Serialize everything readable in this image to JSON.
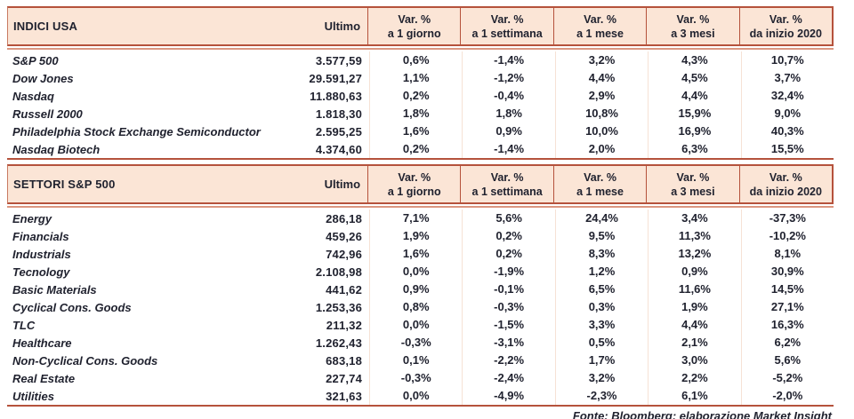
{
  "chart_data": [
    {
      "type": "table",
      "title": "INDICI USA",
      "ultimo_label": "Ultimo",
      "var_headers": [
        {
          "line1": "Var. %",
          "line2": "a 1 giorno"
        },
        {
          "line1": "Var. %",
          "line2": "a 1 settimana"
        },
        {
          "line1": "Var. %",
          "line2": "a 1 mese"
        },
        {
          "line1": "Var. %",
          "line2": "a 3 mesi"
        },
        {
          "line1": "Var. %",
          "line2": "da inizio 2020"
        }
      ],
      "rows": [
        {
          "name": "S&P 500",
          "ultimo": "3.577,59",
          "vars": [
            "0,6%",
            "-1,4%",
            "3,2%",
            "4,3%",
            "10,7%"
          ]
        },
        {
          "name": "Dow Jones",
          "ultimo": "29.591,27",
          "vars": [
            "1,1%",
            "-1,2%",
            "4,4%",
            "4,5%",
            "3,7%"
          ]
        },
        {
          "name": "Nasdaq",
          "ultimo": "11.880,63",
          "vars": [
            "0,2%",
            "-0,4%",
            "2,9%",
            "4,4%",
            "32,4%"
          ]
        },
        {
          "name": "Russell 2000",
          "ultimo": "1.818,30",
          "vars": [
            "1,8%",
            "1,8%",
            "10,8%",
            "15,9%",
            "9,0%"
          ]
        },
        {
          "name": "Philadelphia Stock Exchange Semiconductor",
          "ultimo": "2.595,25",
          "vars": [
            "1,6%",
            "0,9%",
            "10,0%",
            "16,9%",
            "40,3%"
          ]
        },
        {
          "name": "Nasdaq Biotech",
          "ultimo": "4.374,60",
          "vars": [
            "0,2%",
            "-1,4%",
            "2,0%",
            "6,3%",
            "15,5%"
          ]
        }
      ]
    },
    {
      "type": "table",
      "title": "SETTORI S&P 500",
      "ultimo_label": "Ultimo",
      "var_headers": [
        {
          "line1": "Var. %",
          "line2": "a 1 giorno"
        },
        {
          "line1": "Var. %",
          "line2": "a 1 settimana"
        },
        {
          "line1": "Var. %",
          "line2": "a 1 mese"
        },
        {
          "line1": "Var. %",
          "line2": "a 3 mesi"
        },
        {
          "line1": "Var. %",
          "line2": "da inizio 2020"
        }
      ],
      "rows": [
        {
          "name": "Energy",
          "ultimo": "286,18",
          "vars": [
            "7,1%",
            "5,6%",
            "24,4%",
            "3,4%",
            "-37,3%"
          ]
        },
        {
          "name": "Financials",
          "ultimo": "459,26",
          "vars": [
            "1,9%",
            "0,2%",
            "9,5%",
            "11,3%",
            "-10,2%"
          ]
        },
        {
          "name": "Industrials",
          "ultimo": "742,96",
          "vars": [
            "1,6%",
            "0,2%",
            "8,3%",
            "13,2%",
            "8,1%"
          ]
        },
        {
          "name": "Tecnology",
          "ultimo": "2.108,98",
          "vars": [
            "0,0%",
            "-1,9%",
            "1,2%",
            "0,9%",
            "30,9%"
          ]
        },
        {
          "name": "Basic Materials",
          "ultimo": "441,62",
          "vars": [
            "0,9%",
            "-0,1%",
            "6,5%",
            "11,6%",
            "14,5%"
          ]
        },
        {
          "name": "Cyclical Cons. Goods",
          "ultimo": "1.253,36",
          "vars": [
            "0,8%",
            "-0,3%",
            "0,3%",
            "1,9%",
            "27,1%"
          ]
        },
        {
          "name": "TLC",
          "ultimo": "211,32",
          "vars": [
            "0,0%",
            "-1,5%",
            "3,3%",
            "4,4%",
            "16,3%"
          ]
        },
        {
          "name": "Healthcare",
          "ultimo": "1.262,43",
          "vars": [
            "-0,3%",
            "-3,1%",
            "0,5%",
            "2,1%",
            "6,2%"
          ]
        },
        {
          "name": "Non-Cyclical Cons. Goods",
          "ultimo": "683,18",
          "vars": [
            "0,1%",
            "-2,2%",
            "1,7%",
            "3,0%",
            "5,6%"
          ]
        },
        {
          "name": "Real Estate",
          "ultimo": "227,74",
          "vars": [
            "-0,3%",
            "-2,4%",
            "3,2%",
            "2,2%",
            "-5,2%"
          ]
        },
        {
          "name": "Utilities",
          "ultimo": "321,63",
          "vars": [
            "0,0%",
            "-4,9%",
            "-2,3%",
            "6,1%",
            "-2,0%"
          ]
        }
      ]
    }
  ],
  "footer": "Fonte: Bloomberg; elaborazione Market Insight",
  "colors": {
    "header_bg": "#FBE5D6",
    "line_dark": "#B5523C",
    "line_light": "#DB9680",
    "body_divider": "#F6E2D5",
    "text": "#20222F"
  }
}
